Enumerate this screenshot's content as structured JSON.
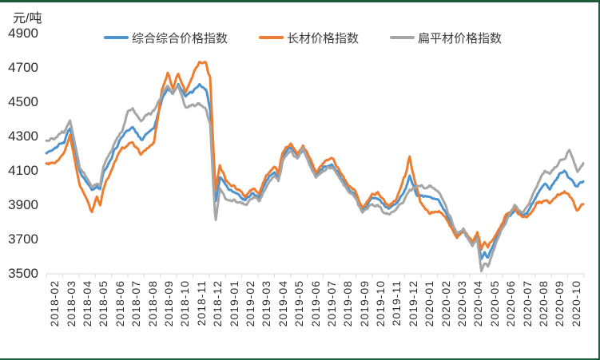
{
  "chart_meta": {
    "unit_label": "元/吨",
    "background": "#FFFFFF",
    "frame_border_color": "#1C5B3C",
    "axis_color": "#D9D9D9",
    "text_color": "#2E2E2E"
  },
  "chart_data": {
    "type": "line",
    "title": "",
    "ylabel": "元/吨",
    "xlabel": "",
    "ylim": [
      3500,
      4900
    ],
    "y_ticks": [
      3500,
      3700,
      3900,
      4100,
      4300,
      4500,
      4700,
      4900
    ],
    "grid": false,
    "legend_position": "top",
    "categories": [
      "2018-02",
      "2018-03",
      "2018-04",
      "2018-05",
      "2018-06",
      "2018-07",
      "2018-08",
      "2018-09",
      "2018-10",
      "2018-11",
      "2018-12",
      "2019-01",
      "2019-02",
      "2019-03",
      "2019-04",
      "2019-05",
      "2019-06",
      "2019-07",
      "2019-08",
      "2019-09",
      "2019-10",
      "2019-11",
      "2019-12",
      "2020-01",
      "2020-02",
      "2020-03",
      "2020-04",
      "2020-05",
      "2020-06",
      "2020-07",
      "2020-08",
      "2020-09",
      "2020-10"
    ],
    "keyframe_note": "t = months since start of 2018-02 (center of month i is t=i+0.5); values are price index 元/吨 read from chart; daily wiggle reproduced with small noise",
    "jitter": {
      "amp1": 8,
      "wave1": 0.16,
      "amp2": 4,
      "wave2": 0.055
    },
    "series": [
      {
        "id": "composite",
        "name": "综合综合价格指数",
        "color": "#4D93CE",
        "keyframes": [
          [
            0,
            4205
          ],
          [
            0.5,
            4224
          ],
          [
            1.1,
            4270
          ],
          [
            1.45,
            4357
          ],
          [
            2.05,
            4099
          ],
          [
            2.8,
            3990
          ],
          [
            3.1,
            4015
          ],
          [
            3.3,
            3995
          ],
          [
            3.5,
            4085
          ],
          [
            4.35,
            4247
          ],
          [
            4.65,
            4300
          ],
          [
            5.0,
            4333
          ],
          [
            5.3,
            4360
          ],
          [
            5.8,
            4278
          ],
          [
            6.2,
            4320
          ],
          [
            6.6,
            4350
          ],
          [
            7.1,
            4520
          ],
          [
            7.45,
            4583
          ],
          [
            7.75,
            4550
          ],
          [
            8.1,
            4605
          ],
          [
            8.55,
            4530
          ],
          [
            8.9,
            4560
          ],
          [
            9.4,
            4595
          ],
          [
            9.8,
            4580
          ],
          [
            10.05,
            4450
          ],
          [
            10.38,
            3912
          ],
          [
            10.65,
            4060
          ],
          [
            11.0,
            4014
          ],
          [
            11.6,
            3970
          ],
          [
            12.2,
            3926
          ],
          [
            12.7,
            3975
          ],
          [
            13.05,
            3940
          ],
          [
            13.5,
            4044
          ],
          [
            14.0,
            4090
          ],
          [
            14.25,
            4060
          ],
          [
            14.5,
            4185
          ],
          [
            15.0,
            4240
          ],
          [
            15.4,
            4180
          ],
          [
            15.75,
            4225
          ],
          [
            16.25,
            4138
          ],
          [
            16.55,
            4076
          ],
          [
            17.0,
            4120
          ],
          [
            17.5,
            4138
          ],
          [
            18.0,
            4080
          ],
          [
            18.5,
            3998
          ],
          [
            18.95,
            3960
          ],
          [
            19.4,
            3865
          ],
          [
            20.0,
            3940
          ],
          [
            20.35,
            3935
          ],
          [
            21.0,
            3873
          ],
          [
            21.5,
            3912
          ],
          [
            22.05,
            3990
          ],
          [
            22.3,
            4062
          ],
          [
            22.75,
            3958
          ],
          [
            23.6,
            3940
          ],
          [
            24.1,
            3920
          ],
          [
            24.5,
            3865
          ],
          [
            25.2,
            3716
          ],
          [
            25.6,
            3750
          ],
          [
            26.15,
            3670
          ],
          [
            26.45,
            3720
          ],
          [
            26.7,
            3585
          ],
          [
            26.9,
            3630
          ],
          [
            27.1,
            3595
          ],
          [
            27.65,
            3716
          ],
          [
            28.25,
            3826
          ],
          [
            28.75,
            3870
          ],
          [
            29.25,
            3848
          ],
          [
            29.5,
            3851
          ],
          [
            30.1,
            3958
          ],
          [
            30.6,
            4021
          ],
          [
            30.9,
            4000
          ],
          [
            31.5,
            4080
          ],
          [
            31.8,
            4100
          ],
          [
            32.2,
            4050
          ],
          [
            32.6,
            4005
          ],
          [
            32.95,
            4044
          ]
        ]
      },
      {
        "id": "long-products",
        "name": "长材价格指数",
        "color": "#ED7D31",
        "keyframes": [
          [
            0,
            4140
          ],
          [
            0.5,
            4146
          ],
          [
            1.1,
            4200
          ],
          [
            1.45,
            4302
          ],
          [
            2.05,
            4021
          ],
          [
            2.8,
            3865
          ],
          [
            3.1,
            3945
          ],
          [
            3.3,
            3895
          ],
          [
            3.5,
            3990
          ],
          [
            4.35,
            4185
          ],
          [
            4.65,
            4230
          ],
          [
            5.0,
            4247
          ],
          [
            5.3,
            4262
          ],
          [
            5.8,
            4200
          ],
          [
            6.2,
            4235
          ],
          [
            6.6,
            4256
          ],
          [
            7.1,
            4567
          ],
          [
            7.45,
            4669
          ],
          [
            7.75,
            4583
          ],
          [
            8.1,
            4665
          ],
          [
            8.55,
            4552
          ],
          [
            8.9,
            4640
          ],
          [
            9.4,
            4740
          ],
          [
            9.8,
            4728
          ],
          [
            10.05,
            4640
          ],
          [
            10.38,
            3985
          ],
          [
            10.65,
            4138
          ],
          [
            11.0,
            4044
          ],
          [
            11.6,
            4000
          ],
          [
            12.2,
            3958
          ],
          [
            12.7,
            3995
          ],
          [
            13.05,
            3960
          ],
          [
            13.5,
            4076
          ],
          [
            14.0,
            4120
          ],
          [
            14.25,
            4090
          ],
          [
            14.5,
            4208
          ],
          [
            15.0,
            4263
          ],
          [
            15.4,
            4193
          ],
          [
            15.75,
            4248
          ],
          [
            16.25,
            4161
          ],
          [
            16.55,
            4091
          ],
          [
            17.0,
            4146
          ],
          [
            17.5,
            4177
          ],
          [
            18.0,
            4099
          ],
          [
            18.5,
            4013
          ],
          [
            18.95,
            3980
          ],
          [
            19.4,
            3880
          ],
          [
            20.0,
            3958
          ],
          [
            20.35,
            3973
          ],
          [
            21.0,
            3889
          ],
          [
            21.5,
            3935
          ],
          [
            22.05,
            4080
          ],
          [
            22.3,
            4180
          ],
          [
            22.6,
            4050
          ],
          [
            22.95,
            3920
          ],
          [
            23.25,
            3873
          ],
          [
            23.6,
            3857
          ],
          [
            24.1,
            3860
          ],
          [
            24.5,
            3826
          ],
          [
            25.2,
            3701
          ],
          [
            25.6,
            3755
          ],
          [
            26.15,
            3685
          ],
          [
            26.45,
            3740
          ],
          [
            26.7,
            3645
          ],
          [
            26.9,
            3690
          ],
          [
            27.1,
            3655
          ],
          [
            27.65,
            3740
          ],
          [
            28.25,
            3849
          ],
          [
            28.75,
            3880
          ],
          [
            29.25,
            3826
          ],
          [
            29.5,
            3827
          ],
          [
            30.1,
            3912
          ],
          [
            30.6,
            3927
          ],
          [
            30.9,
            3912
          ],
          [
            31.5,
            3966
          ],
          [
            31.8,
            3975
          ],
          [
            32.2,
            3950
          ],
          [
            32.6,
            3865
          ],
          [
            32.95,
            3912
          ]
        ]
      },
      {
        "id": "flat-products",
        "name": "扁平材价格指数",
        "color": "#A6A6A6",
        "keyframes": [
          [
            0,
            4278
          ],
          [
            0.5,
            4286
          ],
          [
            1.1,
            4330
          ],
          [
            1.45,
            4388
          ],
          [
            2.05,
            4123
          ],
          [
            2.8,
            4005
          ],
          [
            3.1,
            4030
          ],
          [
            3.3,
            4015
          ],
          [
            3.5,
            4123
          ],
          [
            4.35,
            4286
          ],
          [
            4.65,
            4340
          ],
          [
            5.0,
            4440
          ],
          [
            5.3,
            4458
          ],
          [
            5.8,
            4396
          ],
          [
            6.2,
            4430
          ],
          [
            6.6,
            4444
          ],
          [
            7.1,
            4544
          ],
          [
            7.45,
            4599
          ],
          [
            7.75,
            4560
          ],
          [
            8.1,
            4600
          ],
          [
            8.55,
            4474
          ],
          [
            8.9,
            4480
          ],
          [
            9.4,
            4490
          ],
          [
            9.8,
            4460
          ],
          [
            10.05,
            4380
          ],
          [
            10.38,
            3800
          ],
          [
            10.65,
            4005
          ],
          [
            11.0,
            3935
          ],
          [
            11.6,
            3930
          ],
          [
            12.2,
            3896
          ],
          [
            12.7,
            3950
          ],
          [
            13.05,
            3925
          ],
          [
            13.5,
            4013
          ],
          [
            14.0,
            4070
          ],
          [
            14.25,
            4040
          ],
          [
            14.5,
            4161
          ],
          [
            15.0,
            4215
          ],
          [
            15.4,
            4170
          ],
          [
            15.75,
            4232
          ],
          [
            16.25,
            4115
          ],
          [
            16.55,
            4060
          ],
          [
            17.0,
            4100
          ],
          [
            17.5,
            4123
          ],
          [
            18.0,
            4060
          ],
          [
            18.5,
            3982
          ],
          [
            18.95,
            3940
          ],
          [
            19.4,
            3857
          ],
          [
            20.0,
            3905
          ],
          [
            20.35,
            3896
          ],
          [
            21.0,
            3841
          ],
          [
            21.5,
            3873
          ],
          [
            22.05,
            3944
          ],
          [
            22.3,
            3990
          ],
          [
            22.55,
            4005
          ],
          [
            23.6,
            4005
          ],
          [
            24.1,
            3970
          ],
          [
            24.5,
            3896
          ],
          [
            25.2,
            3732
          ],
          [
            25.6,
            3760
          ],
          [
            26.15,
            3655
          ],
          [
            26.45,
            3710
          ],
          [
            26.7,
            3520
          ],
          [
            26.9,
            3565
          ],
          [
            27.1,
            3532
          ],
          [
            27.65,
            3693
          ],
          [
            28.25,
            3810
          ],
          [
            28.75,
            3896
          ],
          [
            29.25,
            3850
          ],
          [
            29.5,
            3888
          ],
          [
            30.1,
            4005
          ],
          [
            30.6,
            4107
          ],
          [
            30.9,
            4085
          ],
          [
            31.5,
            4150
          ],
          [
            31.9,
            4185
          ],
          [
            32.1,
            4216
          ],
          [
            32.6,
            4091
          ],
          [
            32.95,
            4146
          ]
        ]
      }
    ]
  }
}
